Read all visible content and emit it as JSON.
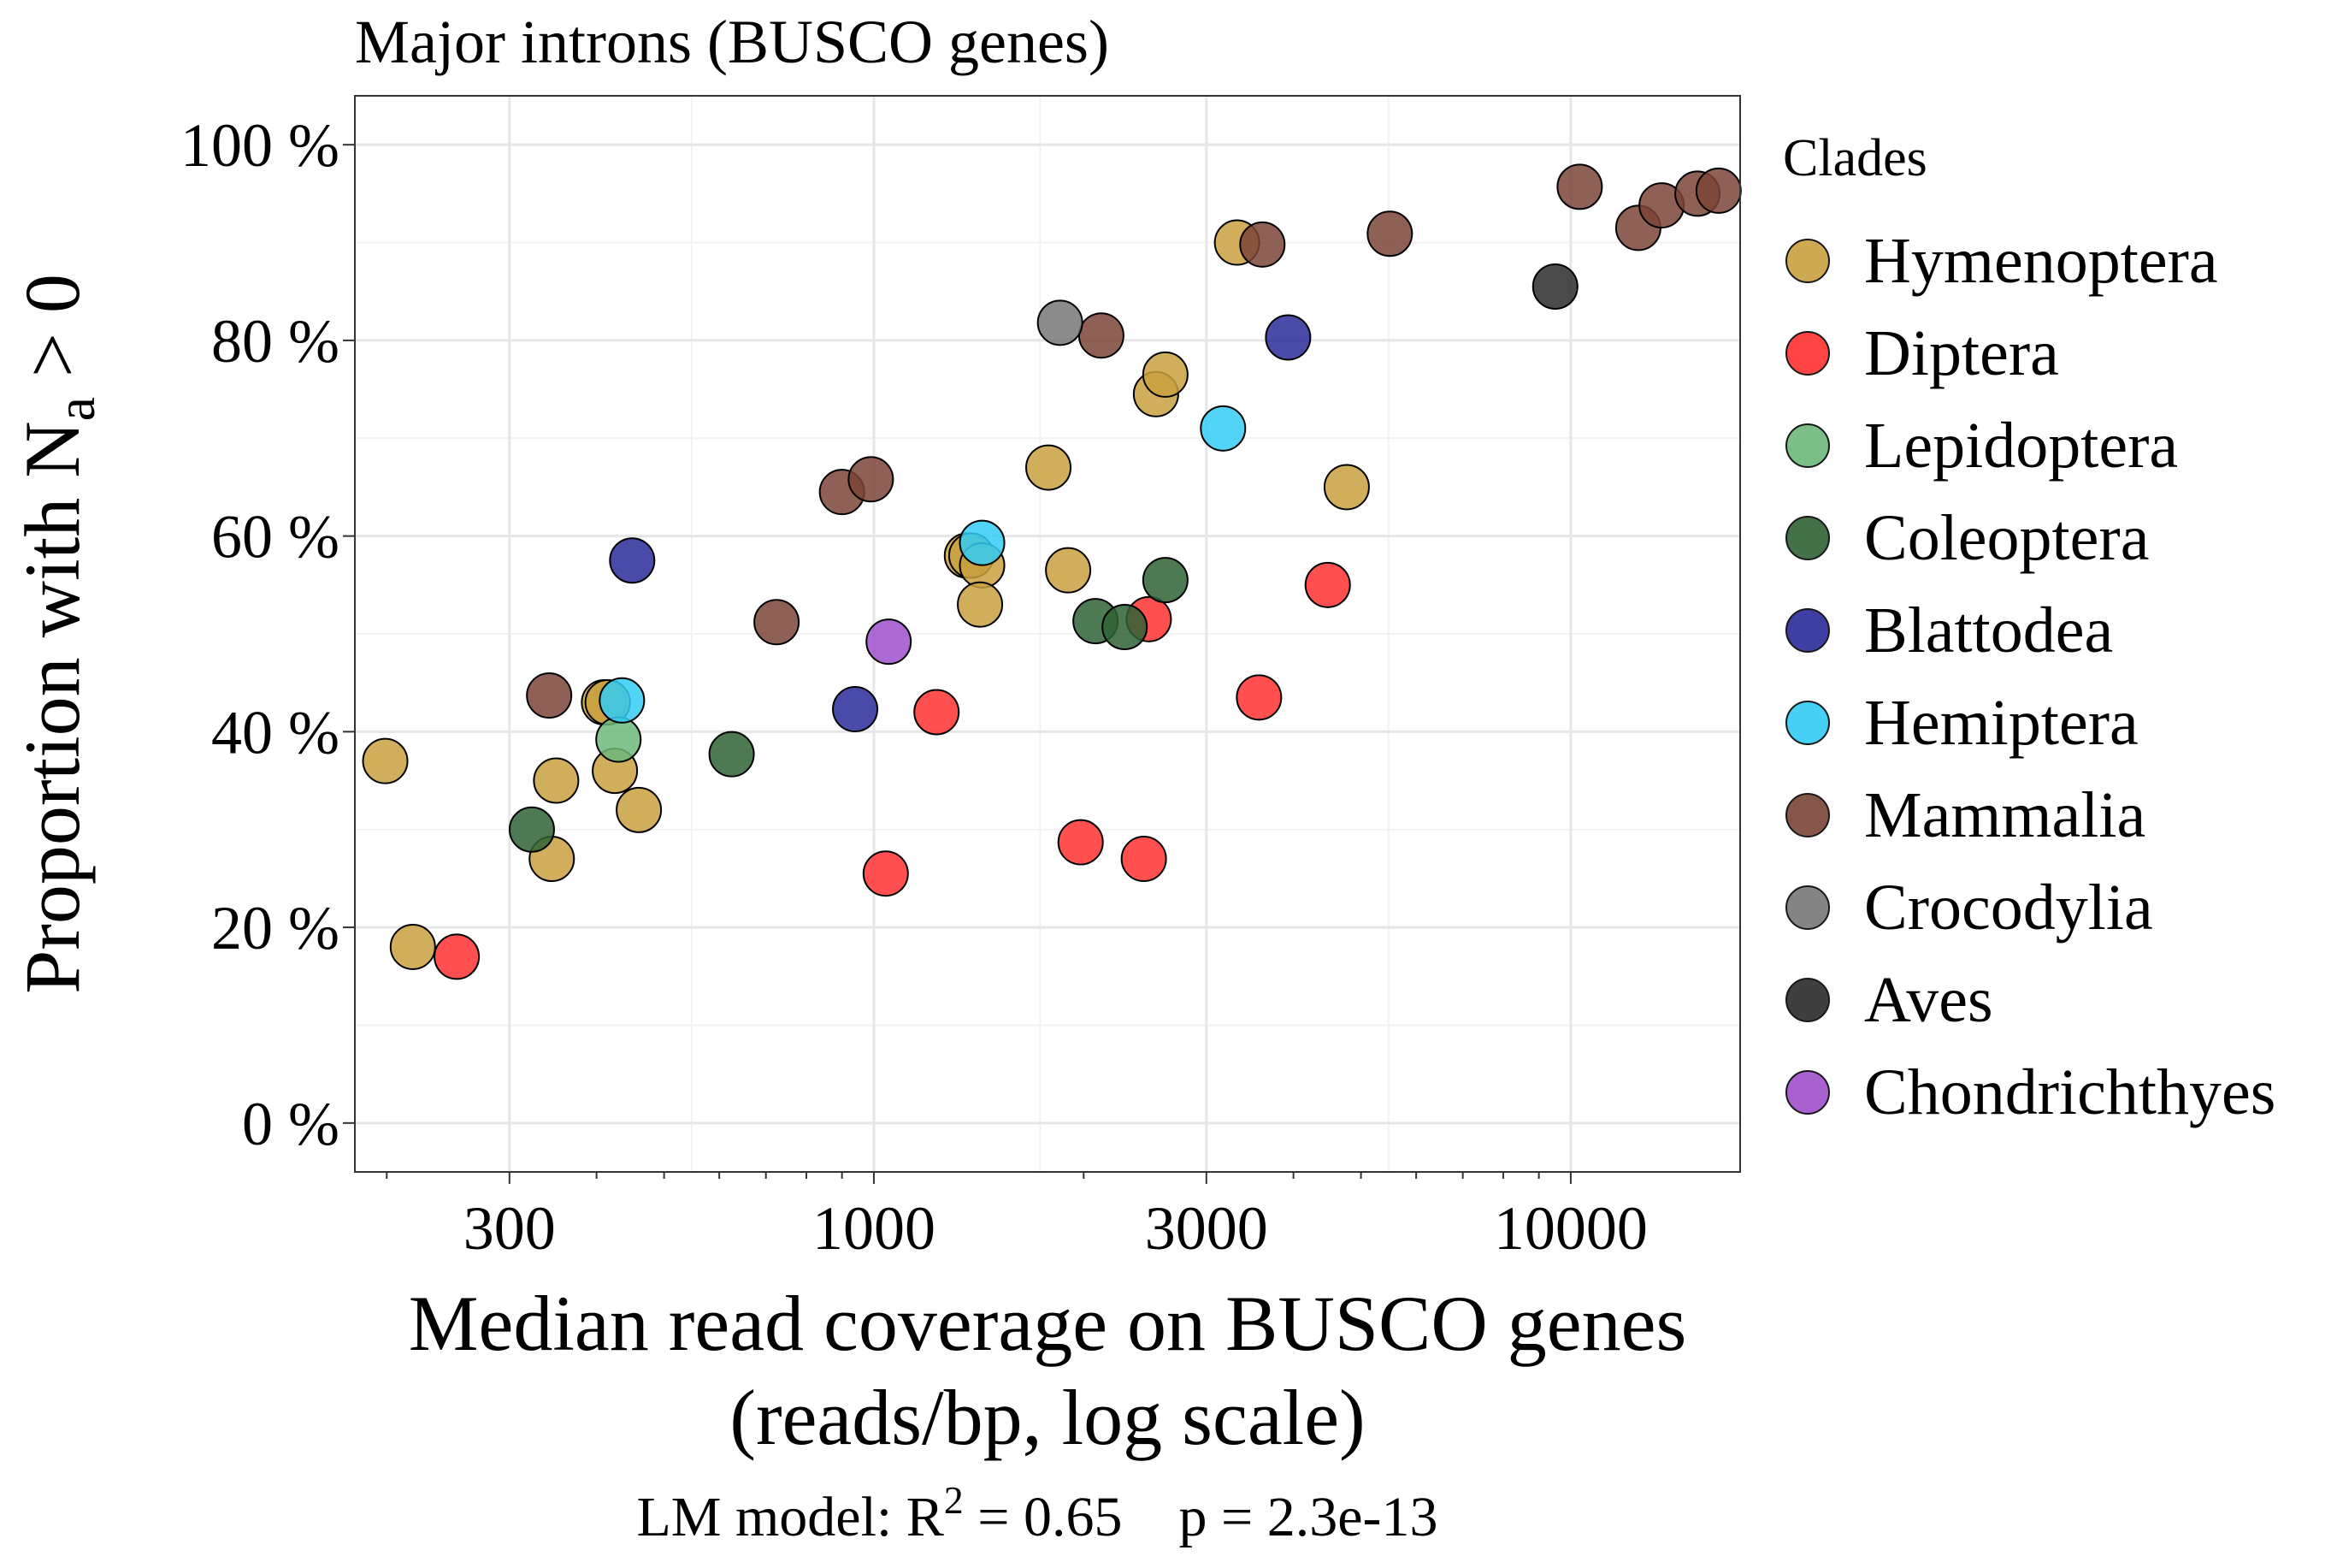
{
  "chart_data": {
    "type": "scatter",
    "title": "Major introns (BUSCO genes)",
    "xlabel_line1": "Median read coverage on BUSCO genes",
    "xlabel_line2": "(reads/bp, log scale)",
    "ylabel_prefix": "Proportion with N",
    "ylabel_subscript": "a",
    "ylabel_suffix": " > 0",
    "caption_prefix": "LM model: R",
    "caption_superscript": "2",
    "caption_suffix": " = 0.65    p = 2.3e-13",
    "x_scale": "log10",
    "xlim": [
      180,
      17500
    ],
    "ylim": [
      -5,
      105
    ],
    "x_ticks": [
      300,
      1000,
      3000,
      10000
    ],
    "x_tick_labels": [
      "300",
      "1000",
      "3000",
      "10000"
    ],
    "y_ticks": [
      0,
      20,
      40,
      60,
      80,
      100
    ],
    "y_tick_labels": [
      "0 %",
      "20 %",
      "40 %",
      "60 %",
      "80 %",
      "100 %"
    ],
    "grid": true,
    "legend_title": "Clades",
    "legend_position": "right",
    "series": [
      {
        "name": "Hymenoptera",
        "color": "#C9A040",
        "points": [
          [
            199,
            37
          ],
          [
            218,
            18
          ],
          [
            345,
            27
          ],
          [
            350,
            35
          ],
          [
            410,
            43
          ],
          [
            415,
            43
          ],
          [
            425,
            36
          ],
          [
            460,
            32
          ],
          [
            1360,
            58
          ],
          [
            1380,
            58
          ],
          [
            1430,
            57
          ],
          [
            1420,
            53
          ],
          [
            1780,
            67
          ],
          [
            1900,
            56.5
          ],
          [
            2540,
            74.5
          ],
          [
            2620,
            76.5
          ],
          [
            3320,
            90
          ],
          [
            4770,
            65
          ]
        ]
      },
      {
        "name": "Diptera",
        "color": "#FF3030",
        "points": [
          [
            252,
            17
          ],
          [
            1040,
            25.5
          ],
          [
            1230,
            42
          ],
          [
            1980,
            28.7
          ],
          [
            2440,
            27
          ],
          [
            2480,
            51.5
          ],
          [
            3570,
            43.5
          ],
          [
            4480,
            55
          ]
        ]
      },
      {
        "name": "Lepidoptera",
        "color": "#6DB87A",
        "points": [
          [
            430,
            39.2
          ]
        ]
      },
      {
        "name": "Coleoptera",
        "color": "#2F6335",
        "points": [
          [
            323,
            30
          ],
          [
            625,
            37.7
          ],
          [
            2080,
            51.3
          ],
          [
            2290,
            50.7
          ],
          [
            2620,
            55.5
          ]
        ]
      },
      {
        "name": "Blattodea",
        "color": "#2A2A9A",
        "points": [
          [
            450,
            57.5
          ],
          [
            940,
            42.3
          ],
          [
            3930,
            80.3
          ]
        ]
      },
      {
        "name": "Hemiptera",
        "color": "#33CCF5",
        "points": [
          [
            435,
            43.2
          ],
          [
            1430,
            59.3
          ],
          [
            3170,
            71
          ]
        ]
      },
      {
        "name": "Mammalia",
        "color": "#7B4437",
        "points": [
          [
            342,
            43.7
          ],
          [
            725,
            51.2
          ],
          [
            900,
            64.5
          ],
          [
            990,
            65.8
          ],
          [
            2120,
            80.5
          ],
          [
            3610,
            89.8
          ],
          [
            5500,
            90.9
          ],
          [
            10300,
            95.7
          ],
          [
            12500,
            91.5
          ],
          [
            13500,
            93.8
          ],
          [
            15200,
            95
          ],
          [
            16300,
            95.3
          ]
        ]
      },
      {
        "name": "Crocodylia",
        "color": "#777777",
        "points": [
          [
            1850,
            81.8
          ]
        ]
      },
      {
        "name": "Aves",
        "color": "#2B2B2B",
        "points": [
          [
            9500,
            85.5
          ]
        ]
      },
      {
        "name": "Chondrichthyes",
        "color": "#A050CC",
        "points": [
          [
            1050,
            49.2
          ]
        ]
      }
    ]
  }
}
